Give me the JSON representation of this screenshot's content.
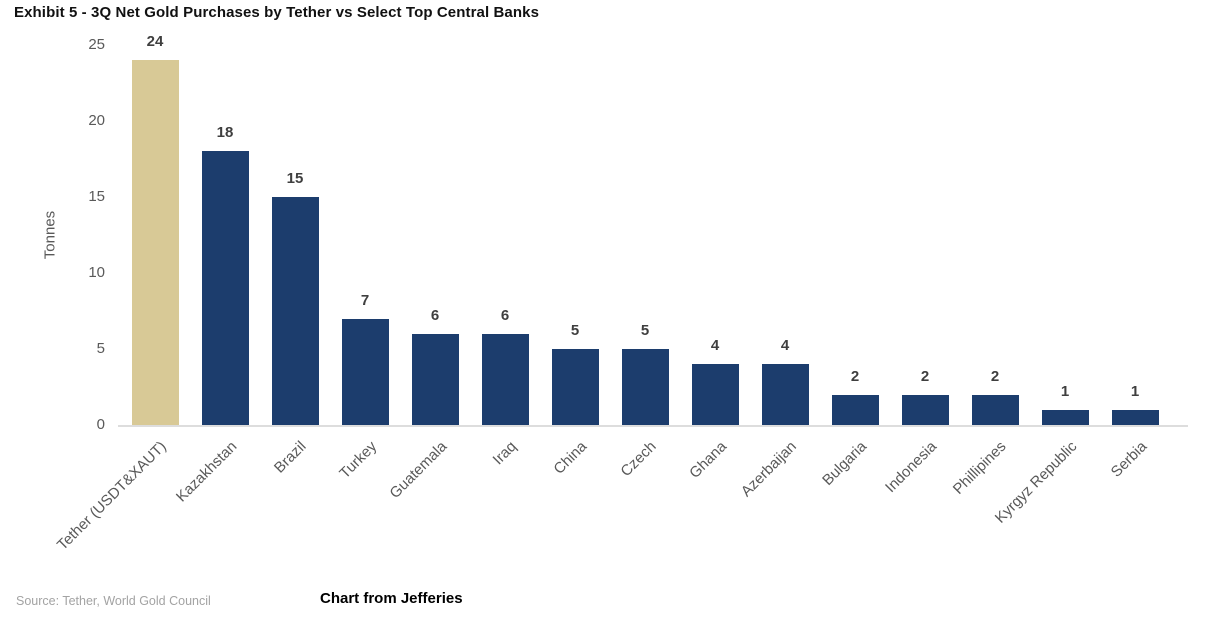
{
  "title": "Exhibit 5 - 3Q Net Gold Purchases by Tether vs Select Top Central Banks",
  "chart_data": {
    "type": "bar",
    "title": "Exhibit 5 - 3Q Net Gold Purchases by Tether vs Select Top Central Banks",
    "xlabel": "",
    "ylabel": "Tonnes",
    "ylim": [
      0,
      25
    ],
    "yticks": [
      0,
      5,
      10,
      15,
      20,
      25
    ],
    "grid": false,
    "legend_position": "none",
    "value_labels_shown": true,
    "categories": [
      "Tether (USDT&XAUT)",
      "Kazakhstan",
      "Brazil",
      "Turkey",
      "Guatemala",
      "Iraq",
      "China",
      "Czech",
      "Ghana",
      "Azerbaijan",
      "Bulgaria",
      "Indonesia",
      "Phillipines",
      "Kyrgyz Republic",
      "Serbia"
    ],
    "values": [
      24,
      18,
      15,
      7,
      6,
      6,
      5,
      5,
      4,
      4,
      2,
      2,
      2,
      1,
      1
    ],
    "highlight_index": 0,
    "highlight_color": "#d8c996",
    "bar_color": "#1c3d6d"
  },
  "footer": {
    "source": "Source: Tether, World Gold Council",
    "note": "Chart from Jefferies"
  }
}
